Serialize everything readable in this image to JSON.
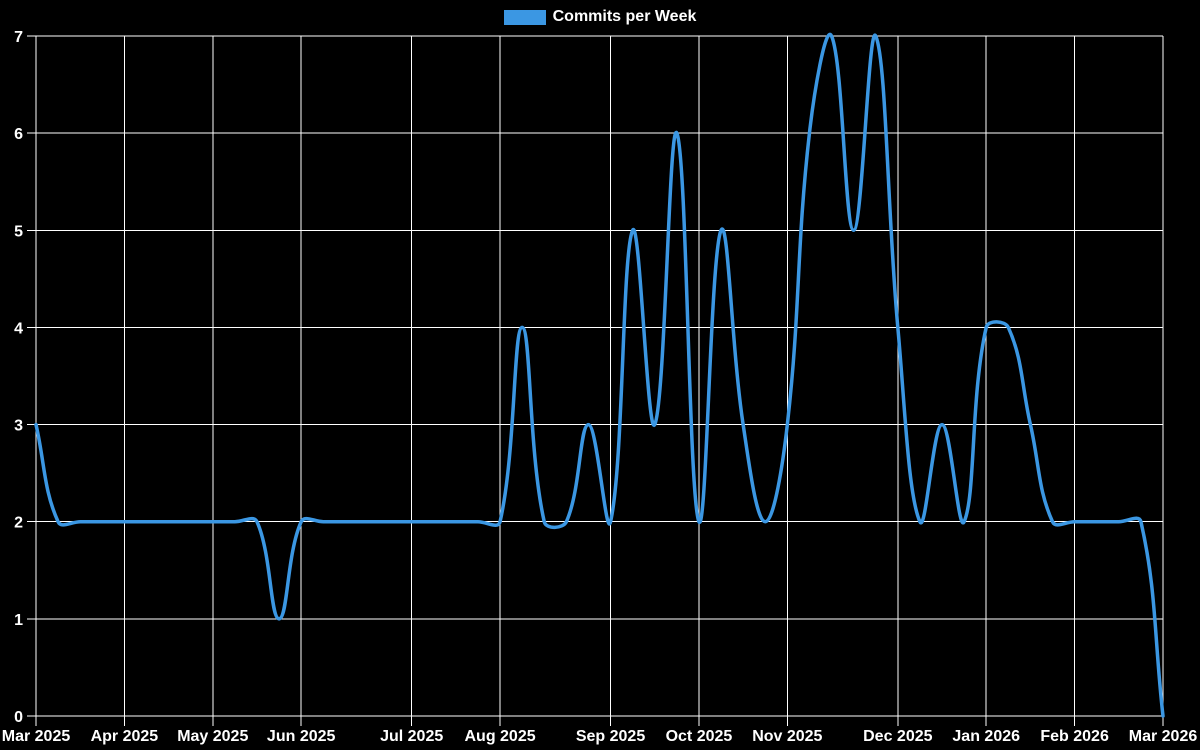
{
  "legend": {
    "label": "Commits per Week"
  },
  "colors": {
    "background": "#000000",
    "grid": "#ffffff",
    "text": "#ffffff",
    "line": "#3b97e3"
  },
  "chart_data": {
    "type": "line",
    "title": "Commits per Week",
    "legend_position": "top",
    "grid": true,
    "background": "#000000",
    "line_color": "#3b97e3",
    "grid_color": "#ffffff",
    "text_color": "#ffffff",
    "xlabel": "",
    "ylabel": "",
    "ylim": [
      0,
      7
    ],
    "y_ticks": [
      0,
      1,
      2,
      3,
      4,
      5,
      6,
      7
    ],
    "x_unit": "week",
    "weeks_total": 52,
    "x_tick_labels": [
      "Mar 2025",
      "Apr 2025",
      "May 2025",
      "Jun 2025",
      "Jul 2025",
      "Aug 2025",
      "Sep 2025",
      "Oct 2025",
      "Nov 2025",
      "Dec 2025",
      "Jan 2026",
      "Feb 2026",
      "Mar 2026"
    ],
    "x_tick_week_indices": [
      0,
      4,
      8,
      12,
      17,
      21,
      26,
      30,
      34,
      39,
      43,
      47,
      51
    ],
    "series": [
      {
        "name": "Commits per Week",
        "values": [
          3,
          2,
          2,
          2,
          2,
          2,
          2,
          2,
          2,
          2,
          2,
          1,
          2,
          2,
          2,
          2,
          2,
          2,
          2,
          2,
          2,
          2,
          4,
          2,
          2,
          3,
          2,
          5,
          3,
          6,
          2,
          5,
          3,
          2,
          3,
          6,
          7,
          5,
          7,
          4,
          2,
          3,
          2,
          4,
          4,
          3,
          2,
          2,
          2,
          2,
          2,
          0
        ]
      }
    ]
  }
}
